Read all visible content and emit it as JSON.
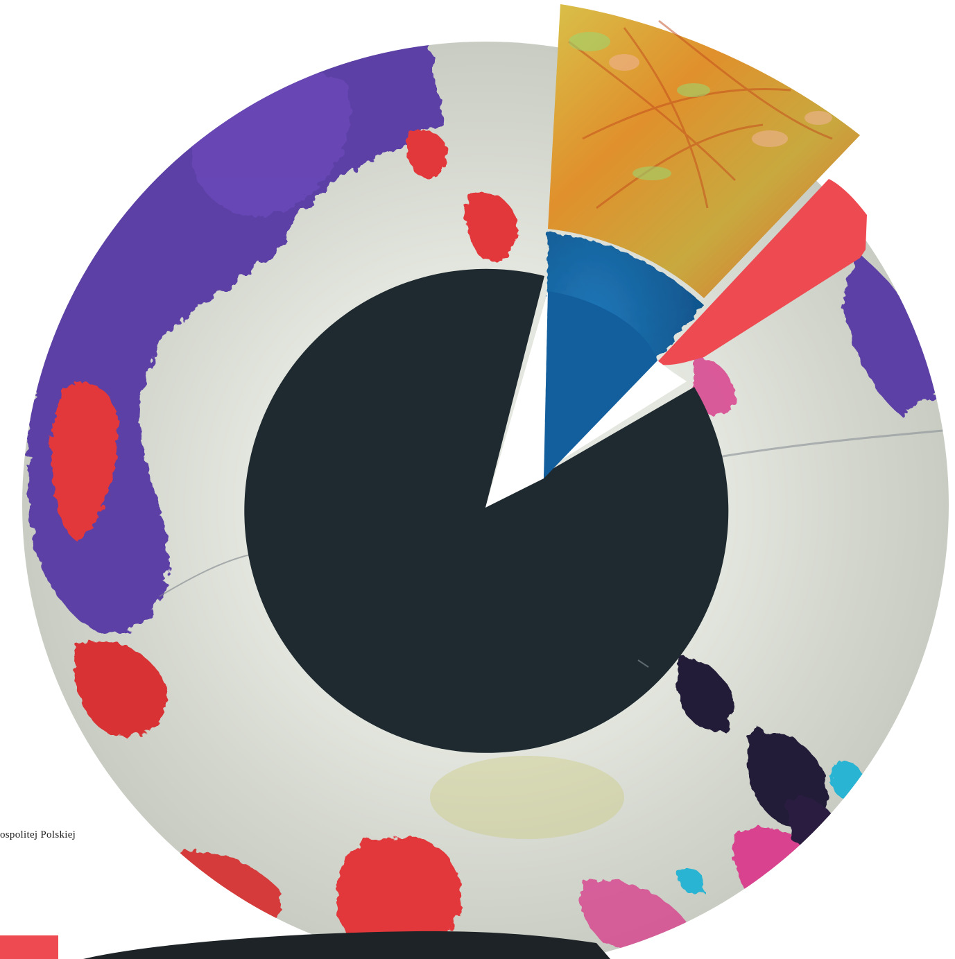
{
  "caption": {
    "text": "ospolitej Polskiej"
  },
  "colors": {
    "background": "#ffffff",
    "center_disc": "#1f2a30",
    "ring_base": "#d6d9d0",
    "purple": "#5b3fa6",
    "red": "#e2373a",
    "coral": "#ee4a52",
    "blue": "#1366a8",
    "orange": "#e0702a",
    "yellow_green": "#c9b447",
    "pink": "#d8438e",
    "cyan": "#2bb4d3",
    "dark_blob": "#241a37",
    "bottom_band": "#1d2326"
  }
}
